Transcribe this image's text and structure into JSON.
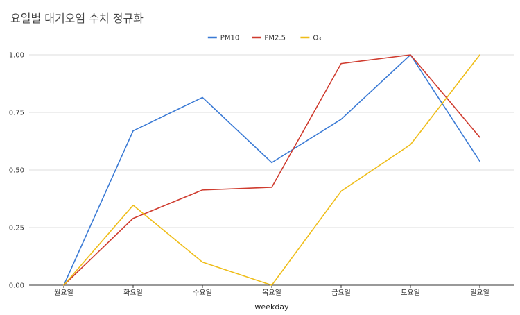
{
  "chart_data": {
    "type": "line",
    "title": "요일별 대기오염 수치 정규화",
    "xlabel": "weekday",
    "ylabel": "",
    "categories": [
      "월요일",
      "화요일",
      "수요일",
      "목요일",
      "금요일",
      "토요일",
      "일요일"
    ],
    "ylim": [
      0,
      1
    ],
    "yticks": [
      "0.00",
      "0.25",
      "0.50",
      "0.75",
      "1.00"
    ],
    "grid": true,
    "legend_position": "top-center",
    "series": [
      {
        "name": "PM10",
        "color": "#3a7ad5",
        "values": [
          0.0,
          0.67,
          0.815,
          0.532,
          0.72,
          1.0,
          0.538
        ]
      },
      {
        "name": "PM2.5",
        "color": "#cf3b2e",
        "values": [
          0.0,
          0.29,
          0.413,
          0.425,
          0.962,
          1.0,
          0.642
        ]
      },
      {
        "name": "O₃",
        "color": "#efbd18",
        "values": [
          0.0,
          0.347,
          0.1,
          0.0,
          0.408,
          0.61,
          1.0
        ]
      }
    ]
  }
}
